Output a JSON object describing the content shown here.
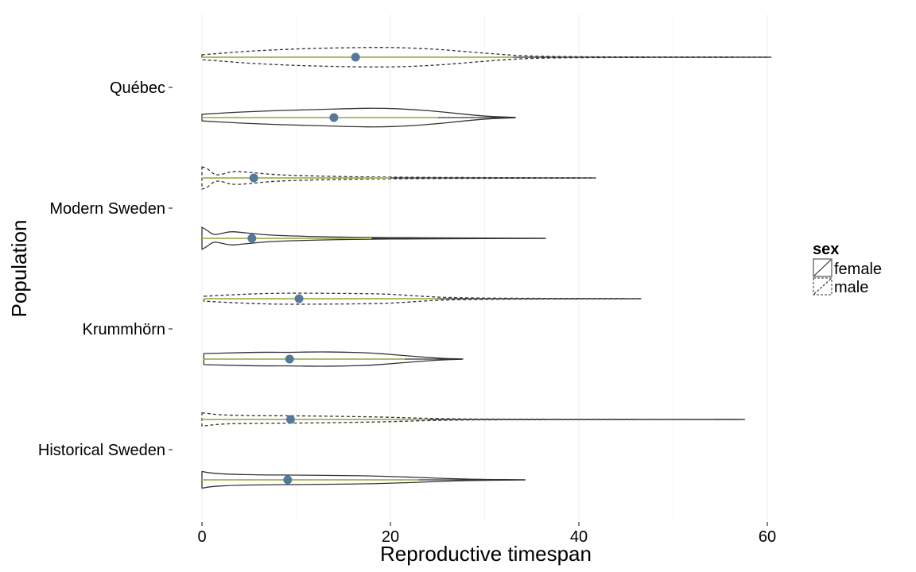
{
  "chart_data": {
    "type": "violin",
    "orientation": "horizontal",
    "xlabel": "Reproductive timespan",
    "ylabel": "Population",
    "xlim": [
      0,
      62
    ],
    "x_ticks": [
      0,
      20,
      40,
      60
    ],
    "x_tick_labels": [
      "0",
      "20",
      "40",
      "60"
    ],
    "grid": "vertical",
    "categories": [
      "Québec",
      "Modern Sweden",
      "Krummhörn",
      "Historical Sweden"
    ],
    "legend": {
      "title": "sex",
      "position": "right",
      "entries": [
        {
          "label": "female",
          "linetype": "solid"
        },
        {
          "label": "male",
          "linetype": "dashed"
        }
      ]
    },
    "colors": {
      "mean_point": "#56789a",
      "range_line": "#a9be6a",
      "outline": "#333333",
      "grid": "#ececec"
    },
    "series": [
      {
        "population": "Québec",
        "sex": "male",
        "linetype": "dashed",
        "min": 0,
        "max": 60.4,
        "mean": 16.3,
        "range_line_end": 33,
        "profile": [
          [
            0,
            0.22
          ],
          [
            2,
            0.35
          ],
          [
            5,
            0.55
          ],
          [
            10,
            0.75
          ],
          [
            15,
            0.85
          ],
          [
            20,
            0.9
          ],
          [
            25,
            0.72
          ],
          [
            28,
            0.5
          ],
          [
            31,
            0.3
          ],
          [
            34,
            0.12
          ],
          [
            38,
            0.05
          ],
          [
            45,
            0.02
          ],
          [
            60.4,
            0.01
          ]
        ]
      },
      {
        "population": "Québec",
        "sex": "female",
        "linetype": "solid",
        "min": 0,
        "max": 33.3,
        "mean": 14.0,
        "range_line_end": 25,
        "profile": [
          [
            0,
            0.3
          ],
          [
            3,
            0.45
          ],
          [
            7,
            0.6
          ],
          [
            12,
            0.72
          ],
          [
            16,
            0.82
          ],
          [
            19,
            0.85
          ],
          [
            22,
            0.75
          ],
          [
            25,
            0.55
          ],
          [
            27,
            0.38
          ],
          [
            29,
            0.2
          ],
          [
            31,
            0.08
          ],
          [
            33.3,
            0.02
          ]
        ]
      },
      {
        "population": "Modern Sweden",
        "sex": "male",
        "linetype": "dashed",
        "min": 0,
        "max": 41.8,
        "mean": 5.5,
        "range_line_end": 20,
        "profile": [
          [
            0,
            1.0
          ],
          [
            0.6,
            0.85
          ],
          [
            1.2,
            0.35
          ],
          [
            1.8,
            0.25
          ],
          [
            2.6,
            0.45
          ],
          [
            3.3,
            0.6
          ],
          [
            4.5,
            0.55
          ],
          [
            6,
            0.42
          ],
          [
            8,
            0.28
          ],
          [
            11,
            0.2
          ],
          [
            15,
            0.12
          ],
          [
            20,
            0.07
          ],
          [
            27,
            0.04
          ],
          [
            35,
            0.02
          ],
          [
            41.8,
            0.01
          ]
        ]
      },
      {
        "population": "Modern Sweden",
        "sex": "female",
        "linetype": "solid",
        "min": 0,
        "max": 36.5,
        "mean": 5.3,
        "range_line_end": 18,
        "profile": [
          [
            0,
            1.0
          ],
          [
            0.5,
            0.75
          ],
          [
            1.2,
            0.3
          ],
          [
            2,
            0.42
          ],
          [
            3,
            0.62
          ],
          [
            4,
            0.55
          ],
          [
            5.5,
            0.42
          ],
          [
            7,
            0.3
          ],
          [
            10,
            0.2
          ],
          [
            14,
            0.12
          ],
          [
            18,
            0.08
          ],
          [
            22,
            0.05
          ],
          [
            28,
            0.03
          ],
          [
            36.5,
            0.01
          ]
        ]
      },
      {
        "population": "Krummhörn",
        "sex": "male",
        "linetype": "dashed",
        "min": 0.2,
        "max": 46.6,
        "mean": 10.3,
        "range_line_end": 25,
        "profile": [
          [
            0.2,
            0.22
          ],
          [
            3,
            0.35
          ],
          [
            7,
            0.48
          ],
          [
            10,
            0.5
          ],
          [
            14,
            0.48
          ],
          [
            18,
            0.45
          ],
          [
            20,
            0.4
          ],
          [
            22,
            0.3
          ],
          [
            24,
            0.18
          ],
          [
            27,
            0.08
          ],
          [
            32,
            0.04
          ],
          [
            40,
            0.02
          ],
          [
            46.6,
            0.01
          ]
        ]
      },
      {
        "population": "Krummhörn",
        "sex": "female",
        "linetype": "solid",
        "min": 0.2,
        "max": 27.7,
        "mean": 9.3,
        "range_line_end": 21.5,
        "profile": [
          [
            0.2,
            0.5
          ],
          [
            3,
            0.55
          ],
          [
            6,
            0.62
          ],
          [
            9,
            0.6
          ],
          [
            12,
            0.65
          ],
          [
            15,
            0.63
          ],
          [
            18,
            0.55
          ],
          [
            20,
            0.42
          ],
          [
            22,
            0.28
          ],
          [
            24,
            0.15
          ],
          [
            26,
            0.05
          ],
          [
            27.7,
            0.01
          ]
        ]
      },
      {
        "population": "Historical Sweden",
        "sex": "male",
        "linetype": "dashed",
        "min": 0,
        "max": 57.6,
        "mean": 9.4,
        "range_line_end": 24,
        "profile": [
          [
            0,
            0.6
          ],
          [
            2,
            0.4
          ],
          [
            5,
            0.35
          ],
          [
            9,
            0.33
          ],
          [
            13,
            0.3
          ],
          [
            17,
            0.25
          ],
          [
            20,
            0.2
          ],
          [
            23,
            0.12
          ],
          [
            26,
            0.06
          ],
          [
            30,
            0.03
          ],
          [
            40,
            0.015
          ],
          [
            57.6,
            0.005
          ]
        ]
      },
      {
        "population": "Historical Sweden",
        "sex": "female",
        "linetype": "solid",
        "min": 0,
        "max": 34.3,
        "mean": 9.1,
        "range_line_end": 23,
        "profile": [
          [
            0,
            0.75
          ],
          [
            1,
            0.6
          ],
          [
            3,
            0.5
          ],
          [
            6,
            0.45
          ],
          [
            10,
            0.42
          ],
          [
            14,
            0.4
          ],
          [
            18,
            0.35
          ],
          [
            21,
            0.28
          ],
          [
            24,
            0.18
          ],
          [
            27,
            0.09
          ],
          [
            30,
            0.04
          ],
          [
            34.3,
            0.01
          ]
        ]
      }
    ]
  }
}
